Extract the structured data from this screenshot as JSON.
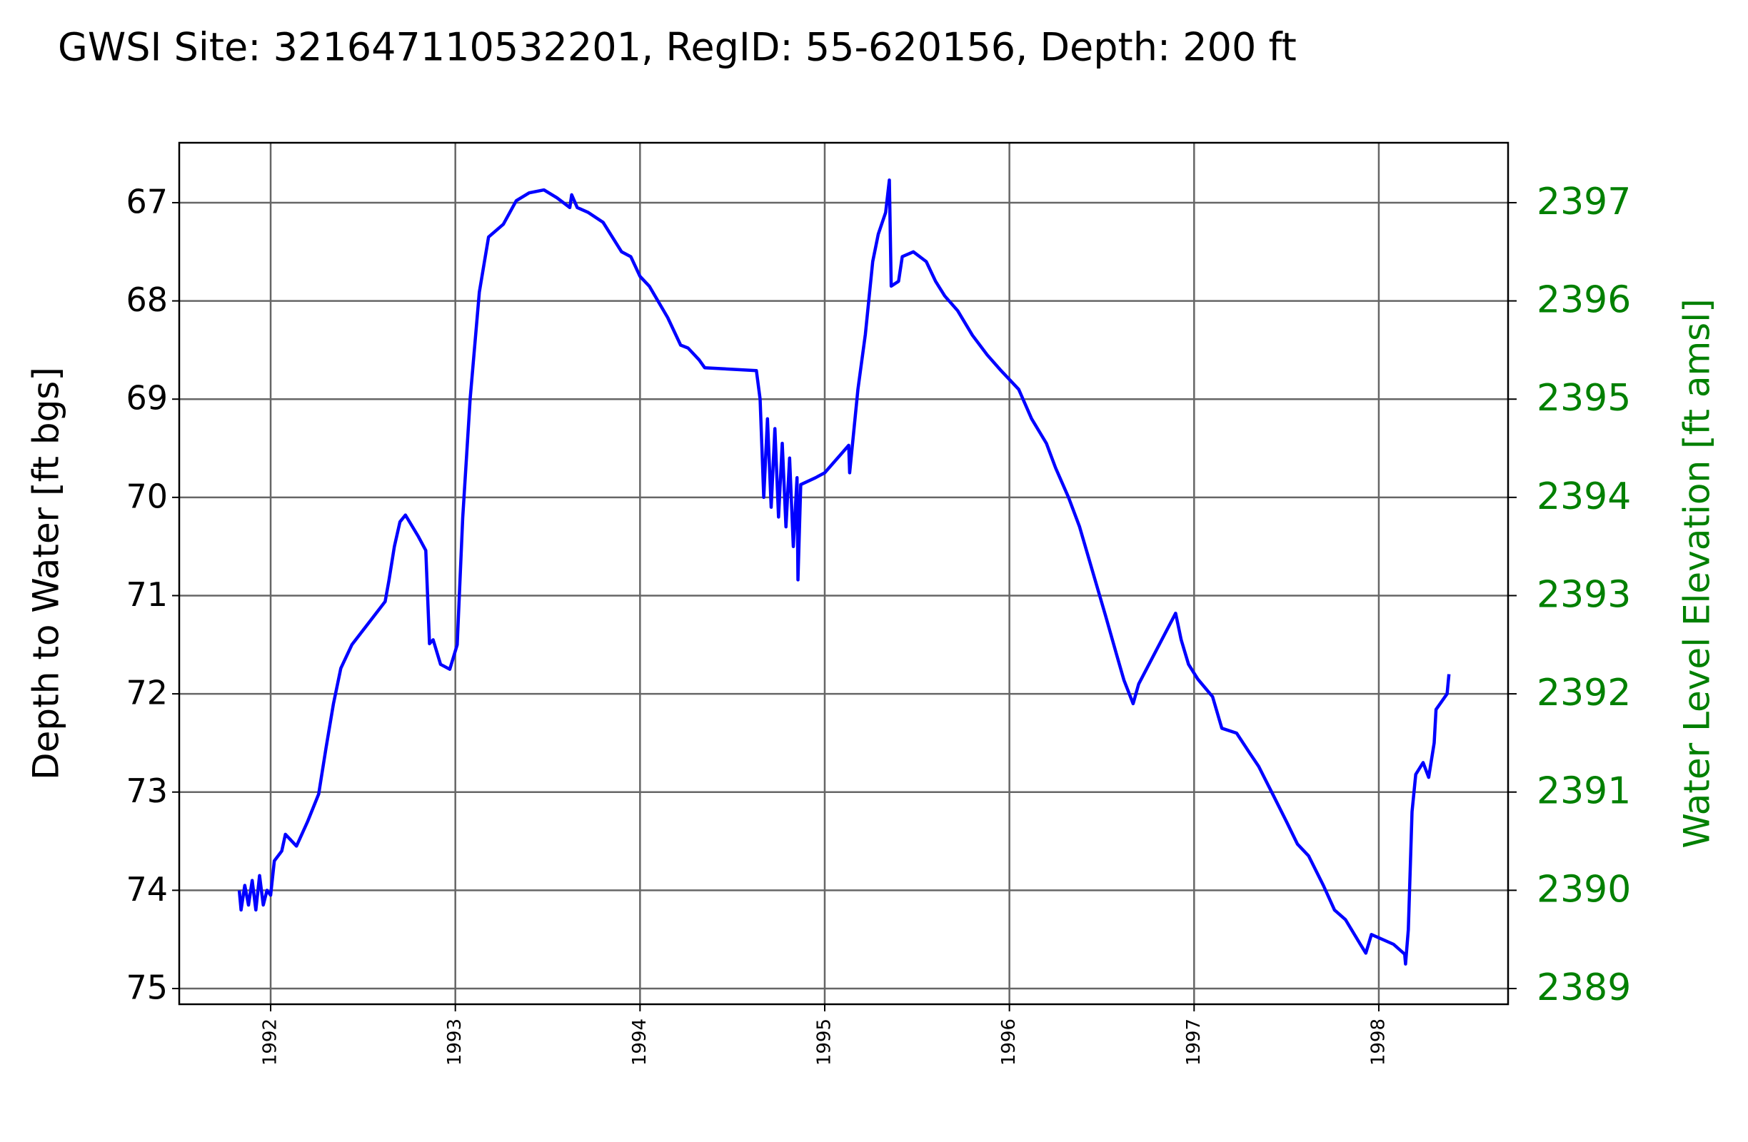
{
  "chart_data": {
    "type": "line",
    "title": "GWSI Site: 321647110532201, RegID: 55-620156, Depth: 200 ft",
    "ylabel": "Depth to Water [ft bgs]",
    "y2label": "Water Level Elevation [ft amsl]",
    "xlim": [
      1991.505,
      1998.7
    ],
    "xticks": [
      1992,
      1993,
      1994,
      1995,
      1996,
      1997,
      1998
    ],
    "ylim": [
      75.16,
      66.39
    ],
    "yticks": [
      67,
      68,
      69,
      70,
      71,
      72,
      73,
      74,
      75
    ],
    "y2lim": [
      2388.84,
      2397.61
    ],
    "y2ticks": [
      2389,
      2390,
      2391,
      2392,
      2393,
      2394,
      2395,
      2396,
      2397
    ],
    "y2color": "#008000",
    "grid": true,
    "x": [
      1991.83,
      1991.84,
      1991.86,
      1991.88,
      1991.9,
      1991.92,
      1991.94,
      1991.96,
      1991.98,
      1992.0,
      1992.02,
      1992.06,
      1992.08,
      1992.14,
      1992.2,
      1992.26,
      1992.3,
      1992.34,
      1992.38,
      1992.44,
      1992.62,
      1992.64,
      1992.67,
      1992.7,
      1992.73,
      1992.8,
      1992.84,
      1992.86,
      1992.88,
      1992.92,
      1992.97,
      1993.01,
      1993.04,
      1993.08,
      1993.13,
      1993.18,
      1993.26,
      1993.33,
      1993.4,
      1993.48,
      1993.55,
      1993.62,
      1993.63,
      1993.66,
      1993.72,
      1993.8,
      1993.85,
      1993.9,
      1993.95,
      1994.0,
      1994.05,
      1994.15,
      1994.22,
      1994.26,
      1994.32,
      1994.35,
      1994.63,
      1994.65,
      1994.67,
      1994.69,
      1994.71,
      1994.73,
      1994.75,
      1994.77,
      1994.79,
      1994.81,
      1994.83,
      1994.85,
      1994.855,
      1994.87,
      1994.95,
      1995.0,
      1995.13,
      1995.135,
      1995.18,
      1995.22,
      1995.26,
      1995.29,
      1995.33,
      1995.35,
      1995.36,
      1995.4,
      1995.42,
      1995.48,
      1995.55,
      1995.6,
      1995.65,
      1995.72,
      1995.8,
      1995.88,
      1995.95,
      1996.05,
      1996.12,
      1996.2,
      1996.25,
      1996.32,
      1996.38,
      1996.45,
      1996.52,
      1996.58,
      1996.62,
      1996.67,
      1996.7,
      1996.9,
      1996.93,
      1996.97,
      1997.02,
      1997.1,
      1997.15,
      1997.23,
      1997.3,
      1997.35,
      1997.42,
      1997.5,
      1997.56,
      1997.62,
      1997.7,
      1997.76,
      1997.82,
      1997.9,
      1997.93,
      1997.96,
      1998.08,
      1998.14,
      1998.145,
      1998.16,
      1998.18,
      1998.2,
      1998.24,
      1998.27,
      1998.3,
      1998.31,
      1998.37,
      1998.38
    ],
    "series": [
      {
        "color": "#0000ff",
        "values": [
          74.0,
          74.2,
          73.95,
          74.15,
          73.9,
          74.2,
          73.85,
          74.15,
          74.0,
          74.05,
          73.7,
          73.6,
          73.43,
          73.55,
          73.3,
          73.02,
          72.55,
          72.1,
          71.74,
          71.5,
          71.06,
          70.85,
          70.5,
          70.25,
          70.18,
          70.4,
          70.54,
          71.49,
          71.45,
          71.7,
          71.75,
          71.5,
          70.21,
          69.0,
          67.91,
          67.35,
          67.22,
          66.98,
          66.9,
          66.87,
          66.95,
          67.05,
          66.92,
          67.05,
          67.1,
          67.2,
          67.35,
          67.5,
          67.55,
          67.75,
          67.85,
          68.17,
          68.45,
          68.48,
          68.6,
          68.68,
          68.71,
          69.0,
          70.0,
          69.2,
          70.1,
          69.3,
          70.2,
          69.45,
          70.3,
          69.6,
          70.5,
          69.8,
          70.84,
          69.87,
          69.8,
          69.75,
          69.47,
          69.75,
          68.9,
          68.34,
          67.6,
          67.32,
          67.1,
          66.77,
          67.85,
          67.8,
          67.55,
          67.5,
          67.6,
          67.8,
          67.95,
          68.1,
          68.35,
          68.55,
          68.7,
          68.9,
          69.2,
          69.45,
          69.7,
          70.0,
          70.3,
          70.75,
          71.2,
          71.6,
          71.86,
          72.1,
          71.9,
          71.18,
          71.45,
          71.7,
          71.85,
          72.03,
          72.35,
          72.4,
          72.6,
          72.74,
          73.0,
          73.3,
          73.53,
          73.65,
          73.95,
          74.2,
          74.3,
          74.55,
          74.64,
          74.45,
          74.55,
          74.65,
          74.75,
          74.4,
          73.2,
          72.82,
          72.7,
          72.85,
          72.5,
          72.16,
          72.0,
          71.8
        ]
      }
    ]
  }
}
